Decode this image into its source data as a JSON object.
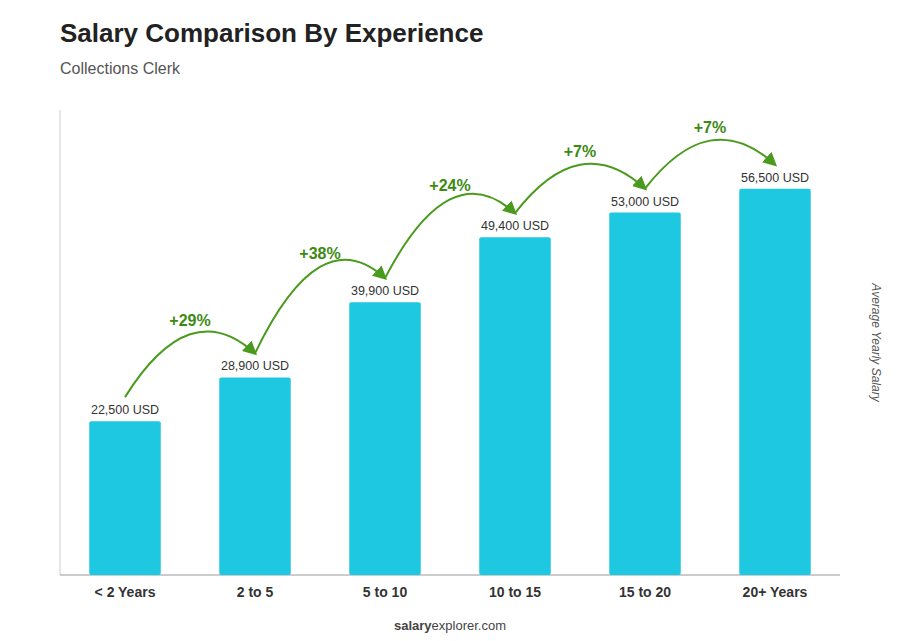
{
  "chart_data": {
    "type": "bar",
    "title": "Salary Comparison By Experience",
    "subtitle": "Collections Clerk",
    "ylabel": "Average Yearly Salary",
    "categories": [
      "< 2 Years",
      "2 to 5",
      "5 to 10",
      "10 to 15",
      "15 to 20",
      "20+ Years"
    ],
    "values": [
      22500,
      28900,
      39900,
      49400,
      53000,
      56500
    ],
    "value_labels": [
      "22,500 USD",
      "28,900 USD",
      "39,900 USD",
      "49,400 USD",
      "53,000 USD",
      "56,500 USD"
    ],
    "data_labels": true,
    "color": "#1ec8e0",
    "ylim": [
      0,
      68000
    ],
    "tick_labels": "x",
    "grid": false,
    "annotations": [
      "+29%",
      "+38%",
      "+24%",
      "+7%",
      "+7%"
    ],
    "footer": [
      "salary",
      "explorer.com"
    ]
  }
}
